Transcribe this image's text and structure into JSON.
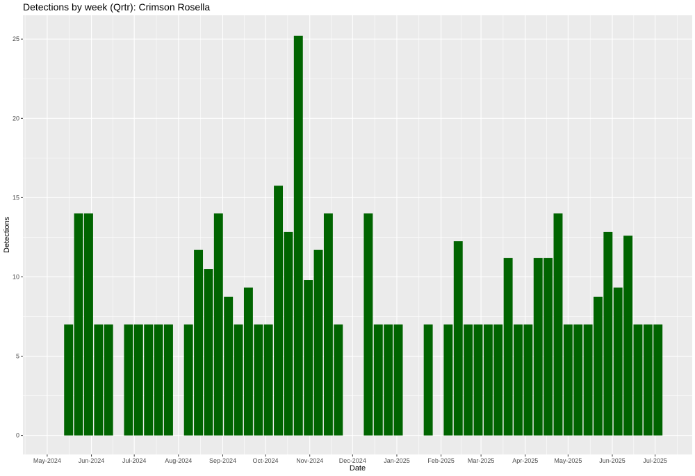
{
  "chart_data": {
    "type": "bar",
    "title": "Detections by week (Qrtr): Crimson Rosella",
    "xlabel": "Date",
    "ylabel": "Detections",
    "bar_color": "#006400",
    "panel_color": "#EBEBEB",
    "grid_color": "#FFFFFF",
    "grid": true,
    "xlim": [
      "2024-04-14",
      "2025-07-27"
    ],
    "ylim": [
      -1.2,
      26.5
    ],
    "yticks": [
      0,
      5,
      10,
      15,
      20,
      25
    ],
    "xticks": [
      {
        "date": "2024-05-01",
        "label": "May-2024"
      },
      {
        "date": "2024-06-01",
        "label": "Jun-2024"
      },
      {
        "date": "2024-07-01",
        "label": "Jul-2024"
      },
      {
        "date": "2024-08-01",
        "label": "Aug-2024"
      },
      {
        "date": "2024-09-01",
        "label": "Sep-2024"
      },
      {
        "date": "2024-10-01",
        "label": "Oct-2024"
      },
      {
        "date": "2024-11-01",
        "label": "Nov-2024"
      },
      {
        "date": "2024-12-01",
        "label": "Dec-2024"
      },
      {
        "date": "2025-01-01",
        "label": "Jan-2025"
      },
      {
        "date": "2025-02-01",
        "label": "Feb-2025"
      },
      {
        "date": "2025-03-01",
        "label": "Mar-2025"
      },
      {
        "date": "2025-04-01",
        "label": "Apr-2025"
      },
      {
        "date": "2025-05-01",
        "label": "May-2025"
      },
      {
        "date": "2025-06-01",
        "label": "Jun-2025"
      },
      {
        "date": "2025-07-01",
        "label": "Jul-2025"
      }
    ],
    "x": [
      "2024-05-16",
      "2024-05-23",
      "2024-05-30",
      "2024-06-06",
      "2024-06-13",
      "2024-06-27",
      "2024-07-04",
      "2024-07-11",
      "2024-07-18",
      "2024-07-25",
      "2024-08-08",
      "2024-08-15",
      "2024-08-22",
      "2024-08-29",
      "2024-09-05",
      "2024-09-12",
      "2024-09-19",
      "2024-09-26",
      "2024-10-03",
      "2024-10-10",
      "2024-10-17",
      "2024-10-24",
      "2024-10-31",
      "2024-11-07",
      "2024-11-14",
      "2024-11-21",
      "2024-12-12",
      "2024-12-19",
      "2024-12-26",
      "2025-01-02",
      "2025-01-23",
      "2025-02-06",
      "2025-02-13",
      "2025-02-20",
      "2025-02-27",
      "2025-03-06",
      "2025-03-13",
      "2025-03-20",
      "2025-03-27",
      "2025-04-03",
      "2025-04-10",
      "2025-04-17",
      "2025-04-24",
      "2025-05-01",
      "2025-05-08",
      "2025-05-15",
      "2025-05-22",
      "2025-05-29",
      "2025-06-05",
      "2025-06-12",
      "2025-06-19",
      "2025-06-26",
      "2025-07-03"
    ],
    "values": [
      7,
      14,
      14,
      7,
      7,
      7,
      7,
      7,
      7,
      7,
      7,
      11.7,
      10.5,
      14,
      8.75,
      7,
      9.33,
      7,
      7,
      15.75,
      12.83,
      25.2,
      9.8,
      11.7,
      14,
      7,
      14,
      7,
      7,
      7,
      7,
      7,
      12.25,
      7,
      7,
      7,
      7,
      11.2,
      7,
      7,
      11.2,
      11.2,
      14,
      7,
      7,
      7,
      8.75,
      12.83,
      9.33,
      12.6,
      7,
      7,
      7
    ]
  }
}
